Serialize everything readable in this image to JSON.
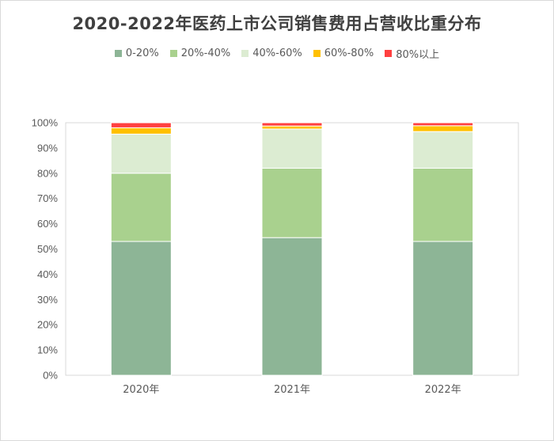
{
  "chart_data": {
    "type": "bar",
    "stacked": true,
    "title": "2020-2022年医药上市公司销售费用占营收比重分布",
    "categories": [
      "2020年",
      "2021年",
      "2022年"
    ],
    "ylim": [
      0,
      100
    ],
    "yticks": [
      "0%",
      "10%",
      "20%",
      "30%",
      "40%",
      "50%",
      "60%",
      "70%",
      "80%",
      "90%",
      "100%"
    ],
    "legend_position": "top",
    "grid": false,
    "series": [
      {
        "name": "0-20%",
        "color": "#8db596",
        "values": [
          53,
          54.5,
          53
        ]
      },
      {
        "name": "20%-40%",
        "color": "#a9d18e",
        "values": [
          27,
          27.5,
          29
        ]
      },
      {
        "name": "40%-60%",
        "color": "#dcecd2",
        "values": [
          15.5,
          15.5,
          14.5
        ]
      },
      {
        "name": "60%-80%",
        "color": "#ffc000",
        "values": [
          2.5,
          1.2,
          2.3
        ]
      },
      {
        "name": "80%以上",
        "color": "#ff4040",
        "values": [
          2,
          1.3,
          1.2
        ]
      }
    ]
  }
}
